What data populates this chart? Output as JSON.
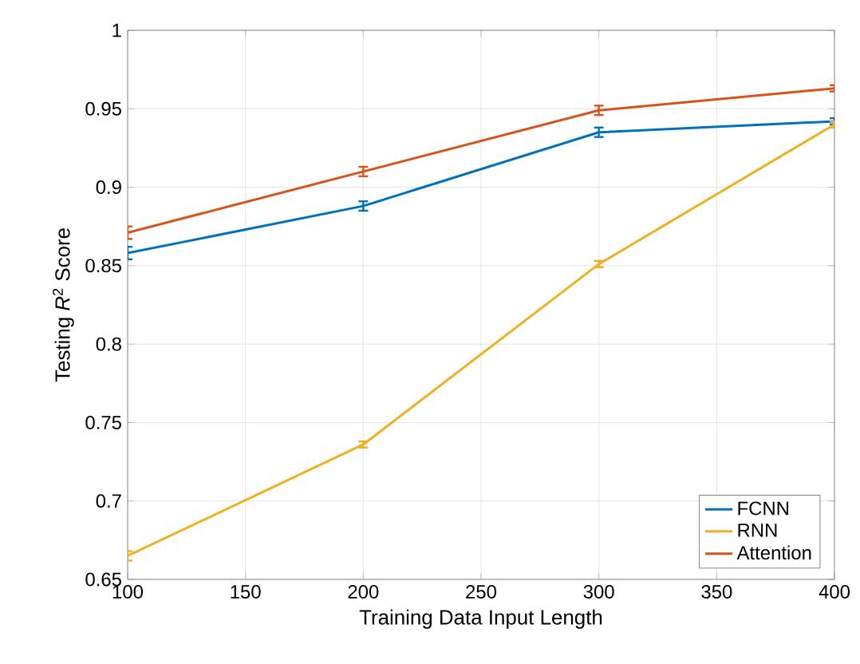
{
  "chart_data": {
    "type": "line",
    "xlabel": "Training Data Input Length",
    "ylabel": "Testing *R*$^{2}$ Score",
    "x": [
      100,
      200,
      300,
      400
    ],
    "series": [
      {
        "name": "FCNN",
        "color": "#0072bd",
        "values": [
          0.858,
          0.888,
          0.935,
          0.942
        ],
        "errors": [
          0.004,
          0.003,
          0.003,
          0.002
        ]
      },
      {
        "name": "RNN",
        "color": "#edb120",
        "values": [
          0.665,
          0.736,
          0.851,
          0.94
        ],
        "errors": [
          0.003,
          0.002,
          0.002,
          0.002
        ]
      },
      {
        "name": "Attention",
        "color": "#d95319",
        "values": [
          0.871,
          0.91,
          0.949,
          0.963
        ],
        "errors": [
          0.004,
          0.003,
          0.003,
          0.002
        ]
      }
    ],
    "xlim": [
      100,
      400
    ],
    "ylim": [
      0.65,
      1
    ],
    "xticks": [
      100,
      150,
      200,
      250,
      300,
      350,
      400
    ],
    "yticks": [
      0.65,
      0.7,
      0.75,
      0.8,
      0.85,
      0.9,
      0.95,
      1
    ],
    "grid": true,
    "legend": "bottom right",
    "marker": "none",
    "line_style": "solid"
  }
}
